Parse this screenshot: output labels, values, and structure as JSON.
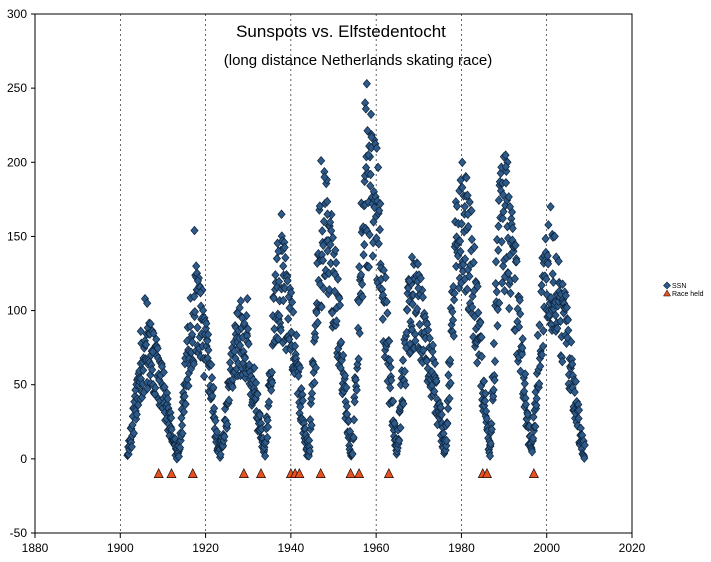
{
  "chart_data": {
    "type": "scatter",
    "title": "Sunspots vs. Elfstedentocht",
    "subtitle": "(long distance Netherlands skating race)",
    "xlabel": "",
    "ylabel": "",
    "xlim": [
      1880,
      2020
    ],
    "ylim": [
      -50,
      300
    ],
    "x_ticks": [
      1880,
      1900,
      1920,
      1940,
      1960,
      1980,
      2000,
      2020
    ],
    "y_ticks": [
      -50,
      0,
      50,
      100,
      150,
      200,
      250,
      300
    ],
    "grid": "vertical",
    "legend_position": "right",
    "series": [
      {
        "name": "SSN",
        "marker": "diamond",
        "color": "#2E5A8A",
        "cycles": [
          {
            "min_year": 1901.7,
            "max_year": 1906.5,
            "end_year": 1913.5,
            "min_value": 2,
            "peak_value": 70,
            "spikes": [
              [
                1905.8,
                108
              ],
              [
                1906.3,
                105
              ],
              [
                1907.1,
                91
              ],
              [
                1904.8,
                86
              ]
            ]
          },
          {
            "min_year": 1913.5,
            "max_year": 1917.8,
            "end_year": 1923.5,
            "min_value": 2,
            "peak_value": 95,
            "spikes": [
              [
                1917.4,
                154
              ],
              [
                1917.8,
                130
              ],
              [
                1918.2,
                120
              ],
              [
                1918.8,
                112
              ]
            ]
          },
          {
            "min_year": 1923.5,
            "max_year": 1928.3,
            "end_year": 1933.8,
            "min_value": 5,
            "peak_value": 80,
            "spikes": [
              [
                1929.8,
                108
              ],
              [
                1927.5,
                98
              ],
              [
                1928.6,
                95
              ]
            ]
          },
          {
            "min_year": 1933.8,
            "max_year": 1937.4,
            "end_year": 1944.2,
            "min_value": 4,
            "peak_value": 115,
            "spikes": [
              [
                1937.8,
                165
              ],
              [
                1937.1,
                140
              ],
              [
                1938.2,
                130
              ]
            ]
          },
          {
            "min_year": 1944.2,
            "max_year": 1947.8,
            "end_year": 1954.3,
            "min_value": 6,
            "peak_value": 150,
            "spikes": [
              [
                1947.1,
                201
              ],
              [
                1947.9,
                190
              ],
              [
                1948.6,
                165
              ]
            ]
          },
          {
            "min_year": 1954.3,
            "max_year": 1958.2,
            "end_year": 1964.8,
            "min_value": 5,
            "peak_value": 185,
            "spikes": [
              [
                1957.8,
                253
              ],
              [
                1957.4,
                240
              ],
              [
                1957.6,
                236
              ],
              [
                1958.9,
                217
              ],
              [
                1958.2,
                205
              ]
            ]
          },
          {
            "min_year": 1964.8,
            "max_year": 1968.9,
            "end_year": 1976.2,
            "min_value": 10,
            "peak_value": 105,
            "spikes": [
              [
                1968.4,
                136
              ],
              [
                1967.8,
                120
              ],
              [
                1969.9,
                115
              ]
            ]
          },
          {
            "min_year": 1976.2,
            "max_year": 1979.9,
            "end_year": 1986.7,
            "min_value": 10,
            "peak_value": 160,
            "spikes": [
              [
                1979.8,
                188
              ],
              [
                1980.2,
                183
              ],
              [
                1980.8,
                170
              ],
              [
                1981.5,
                165
              ]
            ]
          },
          {
            "min_year": 1986.7,
            "max_year": 1989.6,
            "end_year": 1996.4,
            "min_value": 6,
            "peak_value": 160,
            "spikes": [
              [
                1990.8,
                200
              ],
              [
                1990.4,
                197
              ],
              [
                1989.8,
                178
              ],
              [
                1991.4,
                170
              ]
            ]
          },
          {
            "min_year": 1996.4,
            "max_year": 2000.3,
            "end_year": 2008.9,
            "min_value": 4,
            "peak_value": 125,
            "spikes": [
              [
                2000.9,
                170
              ],
              [
                2001.9,
                150
              ],
              [
                2000.2,
                137
              ]
            ]
          }
        ]
      },
      {
        "name": "Race held",
        "marker": "triangle",
        "color": "#E8501E",
        "x": [
          1909,
          1912,
          1917,
          1929,
          1933,
          1940,
          1941,
          1942,
          1947,
          1954,
          1956,
          1963,
          1985,
          1986,
          1997
        ],
        "y": [
          -10,
          -10,
          -10,
          -10,
          -10,
          -10,
          -10,
          -10,
          -10,
          -10,
          -10,
          -10,
          -10,
          -10,
          -10
        ]
      }
    ]
  }
}
